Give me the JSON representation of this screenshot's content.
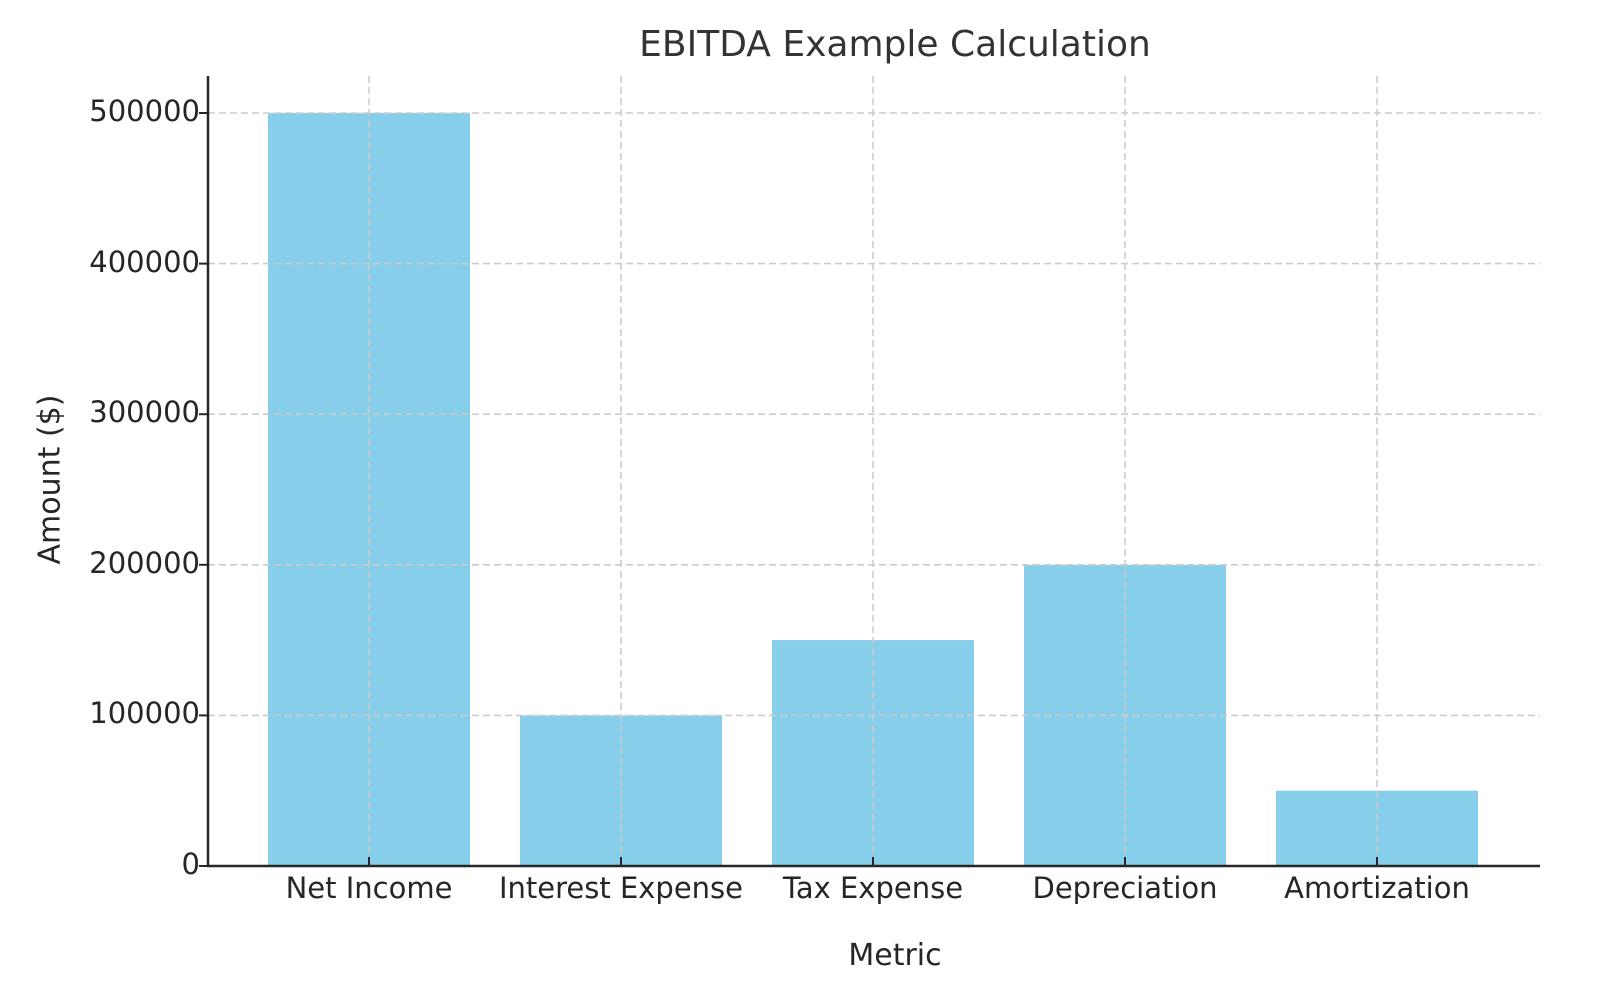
{
  "chart_data": {
    "type": "bar",
    "title": "EBITDA Example Calculation",
    "xlabel": "Metric",
    "ylabel": "Amount ($)",
    "categories": [
      "Net Income",
      "Interest Expense",
      "Tax Expense",
      "Depreciation",
      "Amortization"
    ],
    "values": [
      500000,
      100000,
      150000,
      200000,
      50000
    ],
    "ylim": [
      0,
      525000
    ],
    "yticks": [
      0,
      100000,
      200000,
      300000,
      400000,
      500000
    ],
    "ytick_labels": [
      "0",
      "100000",
      "200000",
      "300000",
      "400000",
      "500000"
    ],
    "grid": true,
    "legend": null,
    "bar_color": "#87CEEB"
  },
  "colors": {
    "bar": "#87CEEB",
    "grid": "#cccccc",
    "axis": "#262626"
  }
}
